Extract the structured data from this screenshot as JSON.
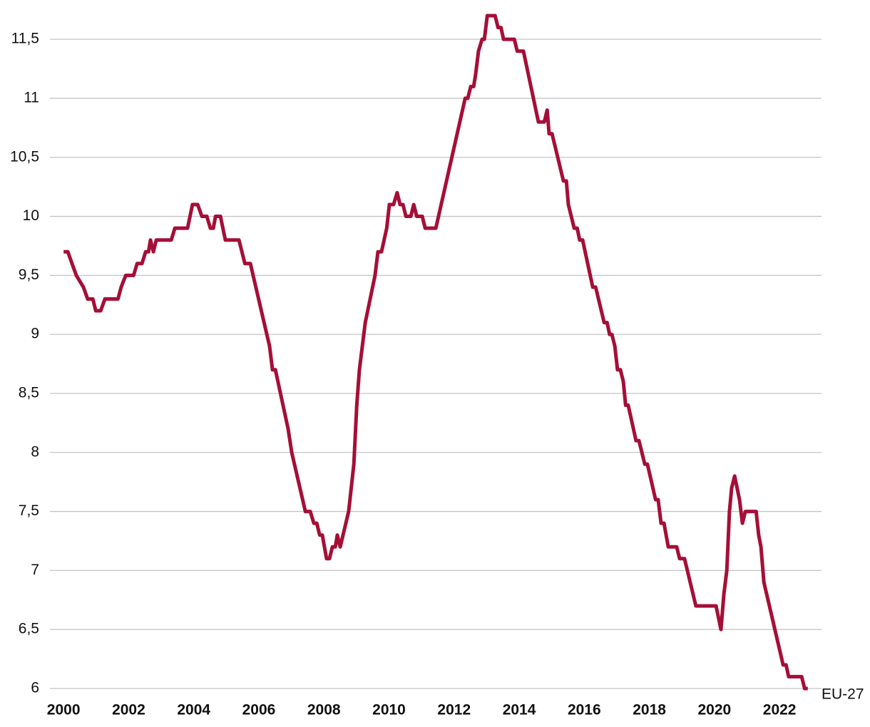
{
  "chart_data": {
    "type": "line",
    "x": [
      2000,
      2000.13,
      2000.26,
      2000.39,
      2000.61,
      2000.74,
      2000.9,
      2000.99,
      2001.14,
      2001.27,
      2001.67,
      2001.77,
      2001.91,
      2002.15,
      2002.26,
      2002.41,
      2002.52,
      2002.61,
      2002.67,
      2002.76,
      2002.85,
      2003.31,
      2003.42,
      2003.81,
      2003.96,
      2004.12,
      2004.25,
      2004.4,
      2004.51,
      2004.6,
      2004.67,
      2004.82,
      2004.97,
      2005.39,
      2005.57,
      2005.74,
      2006.33,
      2006.42,
      2006.51,
      2006.9,
      2007.01,
      2007.43,
      2007.58,
      2007.69,
      2007.78,
      2007.87,
      2007.95,
      2008.08,
      2008.17,
      2008.26,
      2008.35,
      2008.41,
      2008.5,
      2008.76,
      2008.92,
      2009.01,
      2009.09,
      2009.27,
      2009.57,
      2009.66,
      2009.77,
      2009.93,
      2010.01,
      2010.14,
      2010.25,
      2010.34,
      2010.43,
      2010.52,
      2010.67,
      2010.76,
      2010.85,
      2011.02,
      2011.11,
      2011.44,
      2012.34,
      2012.42,
      2012.51,
      2012.6,
      2012.66,
      2012.75,
      2012.86,
      2012.93,
      2013.02,
      2013.26,
      2013.35,
      2013.44,
      2013.52,
      2013.85,
      2013.94,
      2014.13,
      2014.59,
      2014.77,
      2014.86,
      2014.92,
      2015.01,
      2015.36,
      2015.45,
      2015.51,
      2015.69,
      2015.78,
      2015.86,
      2015.95,
      2016.26,
      2016.35,
      2016.61,
      2016.7,
      2016.78,
      2016.85,
      2016.94,
      2017.02,
      2017.11,
      2017.2,
      2017.27,
      2017.35,
      2017.59,
      2017.68,
      2017.86,
      2017.94,
      2018.19,
      2018.27,
      2018.36,
      2018.45,
      2018.58,
      2018.84,
      2018.93,
      2019.08,
      2019.43,
      2020.05,
      2020.2,
      2020.29,
      2020.38,
      2020.46,
      2020.53,
      2020.62,
      2020.77,
      2020.86,
      2020.95,
      2021.28,
      2021.36,
      2021.43,
      2021.52,
      2022.11,
      2022.2,
      2022.28,
      2022.68,
      2022.77,
      2022.87
    ],
    "series": [
      {
        "name": "EU-27",
        "color": "#a50f37",
        "values": [
          9.7,
          9.7,
          9.6,
          9.5,
          9.4,
          9.3,
          9.3,
          9.2,
          9.2,
          9.3,
          9.3,
          9.4,
          9.5,
          9.5,
          9.6,
          9.6,
          9.7,
          9.7,
          9.8,
          9.7,
          9.8,
          9.8,
          9.9,
          9.9,
          10.1,
          10.1,
          10.0,
          10.0,
          9.9,
          9.9,
          10.0,
          10.0,
          9.8,
          9.8,
          9.6,
          9.6,
          8.9,
          8.7,
          8.7,
          8.2,
          8.0,
          7.5,
          7.5,
          7.4,
          7.4,
          7.3,
          7.3,
          7.1,
          7.1,
          7.2,
          7.2,
          7.3,
          7.2,
          7.5,
          7.9,
          8.4,
          8.7,
          9.1,
          9.5,
          9.7,
          9.7,
          9.9,
          10.1,
          10.1,
          10.2,
          10.1,
          10.1,
          10.0,
          10.0,
          10.1,
          10.0,
          10.0,
          9.9,
          9.9,
          11.0,
          11.0,
          11.1,
          11.1,
          11.2,
          11.4,
          11.5,
          11.5,
          11.7,
          11.7,
          11.6,
          11.6,
          11.5,
          11.5,
          11.4,
          11.4,
          10.8,
          10.8,
          10.9,
          10.7,
          10.7,
          10.3,
          10.3,
          10.1,
          9.9,
          9.9,
          9.8,
          9.8,
          9.4,
          9.4,
          9.1,
          9.1,
          9.0,
          9.0,
          8.9,
          8.7,
          8.7,
          8.6,
          8.4,
          8.4,
          8.1,
          8.1,
          7.9,
          7.9,
          7.6,
          7.6,
          7.4,
          7.4,
          7.2,
          7.2,
          7.1,
          7.1,
          6.7,
          6.7,
          6.5,
          6.8,
          7.0,
          7.5,
          7.7,
          7.8,
          7.6,
          7.4,
          7.5,
          7.5,
          7.3,
          7.2,
          6.9,
          6.2,
          6.2,
          6.1,
          6.1,
          6.0,
          6.0
        ]
      }
    ],
    "xlim": [
      1999.58,
      2023.29
    ],
    "xticks": [
      2000,
      2002,
      2004,
      2006,
      2008,
      2010,
      2012,
      2014,
      2016,
      2018,
      2020,
      2022
    ],
    "ylim": [
      6,
      11.7
    ],
    "yticks": [
      6,
      {
        "value": 6.5,
        "label": "6,5"
      },
      7,
      {
        "value": 7.5,
        "label": "7,5"
      },
      8,
      {
        "value": 8.5,
        "label": "8,5"
      },
      9,
      {
        "value": 9.5,
        "label": "9,5"
      },
      10,
      {
        "value": 10.5,
        "label": "10,5"
      },
      11,
      {
        "value": 11.5,
        "label": "11,5"
      }
    ],
    "grid": true
  }
}
